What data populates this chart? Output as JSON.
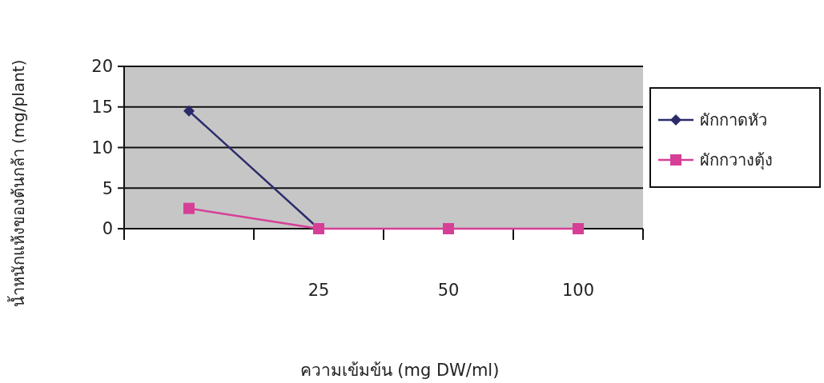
{
  "chart_data": {
    "type": "line",
    "xlabel": "ความเข้มข้น (mg DW/ml)",
    "ylabel": "น้ำหนักแห้งของต้นกล้า (mg/plant)",
    "categories": [
      null,
      "25",
      "50",
      "100"
    ],
    "series": [
      {
        "name": "ผักกาดหัว",
        "color": "#2b2b6b",
        "marker": "diamond",
        "values": [
          14.5,
          0,
          null,
          null
        ]
      },
      {
        "name": "ผักกวางตุ้ง",
        "color": "#d63f96",
        "marker": "square",
        "values": [
          2.5,
          0,
          0,
          0
        ]
      }
    ],
    "ylim": [
      0,
      20
    ],
    "yticks": [
      0,
      5,
      10,
      15,
      20
    ],
    "grid": "y",
    "legend": "right"
  }
}
